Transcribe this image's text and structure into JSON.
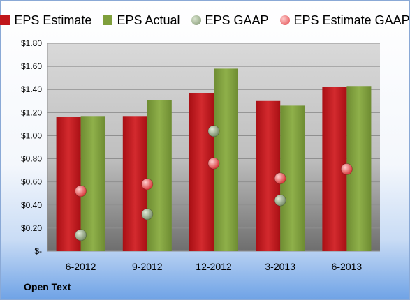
{
  "company": "Open Text",
  "chart_data": {
    "type": "bar",
    "categories": [
      "6-2012",
      "9-2012",
      "12-2012",
      "3-2013",
      "6-2013"
    ],
    "series": [
      {
        "name": "EPS Estimate",
        "kind": "bar",
        "color": "#c0161b",
        "values": [
          1.16,
          1.17,
          1.37,
          1.3,
          1.42
        ]
      },
      {
        "name": "EPS Actual",
        "kind": "bar",
        "color": "#7f9f3c",
        "values": [
          1.17,
          1.31,
          1.58,
          1.26,
          1.43
        ]
      },
      {
        "name": "EPS GAAP",
        "kind": "marker",
        "color": "#8ba07a",
        "values": [
          0.14,
          0.32,
          1.04,
          0.44,
          null
        ]
      },
      {
        "name": "EPS Estimate GAAP",
        "kind": "marker",
        "color": "#e85a5a",
        "values": [
          0.52,
          0.58,
          0.76,
          0.63,
          0.71
        ]
      }
    ],
    "ylim": [
      0,
      1.8
    ],
    "yticks": [
      0,
      0.2,
      0.4,
      0.6,
      0.8,
      1.0,
      1.2,
      1.4,
      1.6,
      1.8
    ],
    "ytick_labels": [
      "$-",
      "$0.20",
      "$0.40",
      "$0.60",
      "$0.80",
      "$1.00",
      "$1.20",
      "$1.40",
      "$1.60",
      "$1.80"
    ],
    "grid": true,
    "legend_position": "top"
  }
}
